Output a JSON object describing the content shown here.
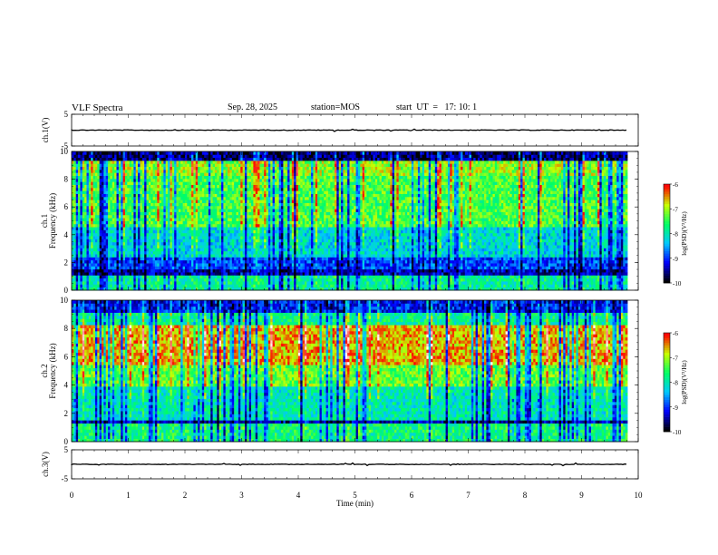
{
  "header": {
    "title": "VLF Spectra",
    "date": "Sep. 28, 2025",
    "station": "station=MOS",
    "start": "start  UT  =   17: 10: 1"
  },
  "chart_data": [
    {
      "type": "line",
      "panel": "ch.1 waveform",
      "ylabel": "ch.1(V)",
      "ylim": [
        -5,
        5
      ],
      "yticks": [
        "5",
        "-5"
      ],
      "xlim": [
        0,
        10
      ],
      "series_level": 0
    },
    {
      "type": "heatmap",
      "panel": "ch.1 spectrogram",
      "ylabel": "ch.1 Frequency (kHz)",
      "ylim": [
        0,
        10
      ],
      "yticks": [
        "0",
        "2",
        "4",
        "6",
        "8",
        "10"
      ],
      "xlim": [
        0,
        9.8
      ],
      "colorbar": {
        "label": "log(PSD)(V²/Hz)",
        "range": [
          -10,
          -6
        ],
        "ticks": [
          "-6",
          "-7",
          "-8",
          "-9",
          "-10"
        ]
      }
    },
    {
      "type": "heatmap",
      "panel": "ch.2 spectrogram",
      "ylabel": "ch.2 Frequency (kHz)",
      "ylim": [
        0,
        10
      ],
      "yticks": [
        "0",
        "2",
        "4",
        "6",
        "8",
        "10"
      ],
      "xlim": [
        0,
        9.8
      ],
      "colorbar": {
        "label": "log(PSD)(V²/Hz)",
        "range": [
          -10,
          -6
        ],
        "ticks": [
          "-6",
          "-7",
          "-8",
          "-9",
          "-10"
        ]
      }
    },
    {
      "type": "line",
      "panel": "ch.3 waveform",
      "ylabel": "ch.3(V)",
      "ylim": [
        -5,
        5
      ],
      "yticks": [
        "5",
        "-5"
      ],
      "xlim": [
        0,
        10
      ],
      "series_level": 0
    }
  ],
  "x_axis": {
    "label": "Time (min)",
    "ticks": [
      "0",
      "1",
      "2",
      "3",
      "4",
      "5",
      "6",
      "7",
      "8",
      "9",
      "10"
    ]
  },
  "colors": {
    "scale": [
      "#000000",
      "#0000ff",
      "#00c8ff",
      "#00ff64",
      "#c8ff00",
      "#ff0000",
      "#ffffff"
    ]
  }
}
